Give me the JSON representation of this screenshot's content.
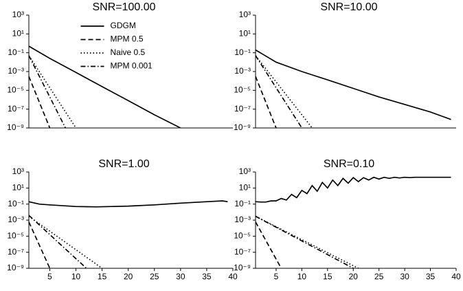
{
  "chart_data": [
    {
      "type": "line",
      "title": "SNR=100.00",
      "yscale": "log",
      "xlim": [
        1,
        40
      ],
      "ylim": [
        1e-09,
        1000
      ],
      "yticks": [
        {
          "value": 1000,
          "label": "10³"
        },
        {
          "value": 10,
          "label": "10¹"
        },
        {
          "value": 0.1,
          "label": "10⁻¹"
        },
        {
          "value": 0.001,
          "label": "10⁻³"
        },
        {
          "value": 1e-05,
          "label": "10⁻⁵"
        },
        {
          "value": 1e-07,
          "label": "10⁻⁷"
        },
        {
          "value": 1e-09,
          "label": "10⁻⁹"
        }
      ],
      "legend": "upper center",
      "series": [
        {
          "name": "GDGM",
          "color": "#000000",
          "linestyle": "solid",
          "x": [
            1,
            5,
            10,
            15,
            20,
            25,
            30
          ],
          "values": [
            0.5,
            0.025,
            0.0008,
            2.5e-05,
            8e-07,
            2.5e-08,
            1e-09
          ]
        },
        {
          "name": "MPM 0.5",
          "color": "#000000",
          "linestyle": "dashed",
          "x": [
            1,
            5
          ],
          "values": [
            0.0003,
            1e-09
          ]
        },
        {
          "name": "Naive 0.5",
          "color": "#000000",
          "linestyle": "dotted",
          "x": [
            1,
            10
          ],
          "values": [
            0.05,
            1e-09
          ]
        },
        {
          "name": "MPM 0.001",
          "color": "#000000",
          "linestyle": "dashdot",
          "x": [
            1,
            8
          ],
          "values": [
            0.05,
            1e-09
          ]
        }
      ]
    },
    {
      "type": "line",
      "title": "SNR=10.00",
      "yscale": "log",
      "xlim": [
        1,
        40
      ],
      "ylim": [
        1e-09,
        1000
      ],
      "yticks": [
        {
          "value": 1000,
          "label": "10³"
        },
        {
          "value": 10,
          "label": "10¹"
        },
        {
          "value": 0.1,
          "label": "10⁻¹"
        },
        {
          "value": 0.001,
          "label": "10⁻³"
        },
        {
          "value": 1e-05,
          "label": "10⁻⁵"
        },
        {
          "value": 1e-07,
          "label": "10⁻⁷"
        },
        {
          "value": 1e-09,
          "label": "10⁻⁹"
        }
      ],
      "series": [
        {
          "color": "#000000",
          "linestyle": "solid",
          "x": [
            1,
            5,
            10,
            15,
            20,
            25,
            30,
            35,
            39
          ],
          "values": [
            0.2,
            0.01,
            0.001,
            0.00013,
            1.6e-05,
            2e-06,
            3.2e-07,
            5e-08,
            8e-09
          ]
        },
        {
          "color": "#000000",
          "linestyle": "dashed",
          "x": [
            1,
            5
          ],
          "values": [
            0.0003,
            1e-09
          ]
        },
        {
          "color": "#000000",
          "linestyle": "dotted",
          "x": [
            1,
            12
          ],
          "values": [
            0.05,
            1e-09
          ]
        },
        {
          "color": "#000000",
          "linestyle": "dashdot",
          "x": [
            1,
            10
          ],
          "values": [
            0.05,
            1e-09
          ]
        }
      ]
    },
    {
      "type": "line",
      "title": "SNR=1.00",
      "yscale": "log",
      "xlim": [
        1,
        40
      ],
      "ylim": [
        1e-09,
        1000
      ],
      "xticks": [
        5,
        10,
        15,
        20,
        25,
        30,
        35,
        40
      ],
      "yticks": [
        {
          "value": 1000,
          "label": "10³"
        },
        {
          "value": 10,
          "label": "10¹"
        },
        {
          "value": 0.1,
          "label": "10⁻¹"
        },
        {
          "value": 0.001,
          "label": "10⁻³"
        },
        {
          "value": 1e-05,
          "label": "10⁻⁵"
        },
        {
          "value": 1e-07,
          "label": "10⁻⁷"
        },
        {
          "value": 1e-09,
          "label": "10⁻⁹"
        }
      ],
      "series": [
        {
          "color": "#000000",
          "linestyle": "solid",
          "x": [
            1,
            3,
            5,
            10,
            14,
            20,
            25,
            30,
            35,
            38,
            39
          ],
          "values": [
            0.2,
            0.1,
            0.08,
            0.05,
            0.045,
            0.056,
            0.08,
            0.13,
            0.2,
            0.25,
            0.2
          ]
        },
        {
          "color": "#000000",
          "linestyle": "dashed",
          "x": [
            1,
            5
          ],
          "values": [
            0.0006,
            1e-09
          ]
        },
        {
          "color": "#000000",
          "linestyle": "dotted",
          "x": [
            1,
            15
          ],
          "values": [
            0.003,
            1e-09
          ]
        },
        {
          "color": "#000000",
          "linestyle": "dashdot",
          "x": [
            1,
            12
          ],
          "values": [
            0.004,
            1e-09
          ]
        }
      ]
    },
    {
      "type": "line",
      "title": "SNR=0.10",
      "yscale": "log",
      "xlim": [
        1,
        40
      ],
      "ylim": [
        1e-09,
        1000
      ],
      "xticks": [
        5,
        10,
        15,
        20,
        25,
        30,
        35,
        40
      ],
      "yticks": [
        {
          "value": 1000,
          "label": "10³"
        },
        {
          "value": 10,
          "label": "10¹"
        },
        {
          "value": 0.1,
          "label": "10⁻¹"
        },
        {
          "value": 0.001,
          "label": "10⁻³"
        },
        {
          "value": 1e-05,
          "label": "10⁻⁵"
        },
        {
          "value": 1e-07,
          "label": "10⁻⁷"
        },
        {
          "value": 1e-09,
          "label": "10⁻⁹"
        }
      ],
      "series": [
        {
          "color": "#000000",
          "linestyle": "solid",
          "x": [
            1,
            2,
            3,
            4,
            5,
            6,
            7,
            8,
            9,
            10,
            11,
            12,
            13,
            14,
            15,
            16,
            17,
            18,
            19,
            20,
            21,
            22,
            23,
            24,
            25,
            26,
            27,
            28,
            29,
            30,
            31,
            32,
            33,
            34,
            35,
            36,
            37,
            38,
            39
          ],
          "values": [
            0.2,
            0.18,
            0.18,
            0.25,
            0.25,
            0.5,
            0.32,
            1.6,
            0.63,
            5,
            2,
            20,
            4,
            50,
            10,
            100,
            20,
            160,
            40,
            200,
            63,
            200,
            100,
            220,
            130,
            220,
            160,
            220,
            180,
            220,
            200,
            220,
            220,
            220,
            220,
            220,
            220,
            220,
            220
          ]
        },
        {
          "color": "#000000",
          "linestyle": "dashed",
          "x": [
            1,
            6
          ],
          "values": [
            0.0006,
            1e-09
          ]
        },
        {
          "color": "#000000",
          "linestyle": "dotted",
          "x": [
            1,
            21
          ],
          "values": [
            0.003,
            1e-09
          ]
        },
        {
          "color": "#000000",
          "linestyle": "dashdot",
          "x": [
            1,
            20
          ],
          "values": [
            0.003,
            1e-09
          ]
        }
      ]
    }
  ]
}
